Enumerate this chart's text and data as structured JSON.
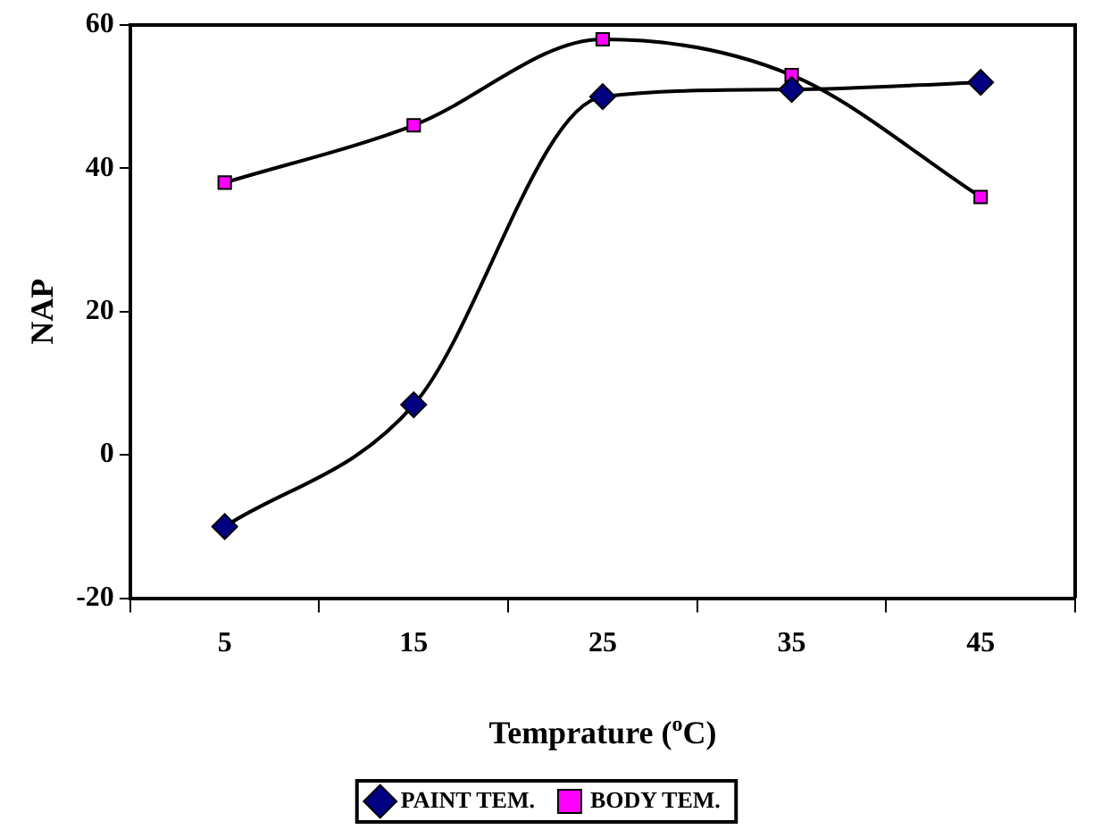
{
  "chart_data": {
    "type": "line",
    "xlabel": "Temprature ($^{o}$C)",
    "ylabel": "NAP",
    "categories": [
      "5",
      "15",
      "25",
      "35",
      "45"
    ],
    "ylim": [
      -20,
      60
    ],
    "yticks": [
      -20,
      0,
      20,
      40,
      60
    ],
    "grid": false,
    "legend": "bottom",
    "line_style": "solid",
    "series": [
      {
        "name": "PAINT TEM.",
        "color": "#000080",
        "marker": "diamond",
        "values": [
          -10,
          7,
          50,
          51,
          52
        ]
      },
      {
        "name": "BODY TEM.",
        "color": "#ff00ff",
        "marker": "square",
        "values": [
          38,
          46,
          58,
          53,
          36
        ]
      }
    ]
  }
}
